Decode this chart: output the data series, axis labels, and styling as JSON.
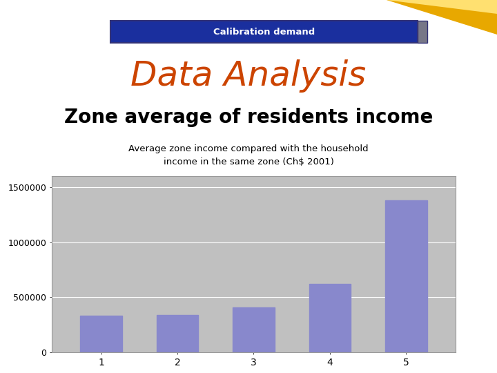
{
  "title_banner": "Calibration demand",
  "main_title": "Data Analysis",
  "subtitle": "Zone average of residents income",
  "sub_subtitle": "Average zone income compared with the household\nincome in the same zone (Ch$ 2001)",
  "categories": [
    1,
    2,
    3,
    4,
    5
  ],
  "values": [
    330000,
    340000,
    410000,
    620000,
    1380000
  ],
  "bar_color": "#8888cc",
  "chart_bg_color": "#c0c0c0",
  "ylim": [
    0,
    1600000
  ],
  "yticks": [
    0,
    500000,
    1000000,
    1500000
  ],
  "ytick_labels": [
    "0",
    "500000",
    "1000000",
    "1500000"
  ],
  "banner_bg_color": "#1a2f9e",
  "banner_border_color": "#333377",
  "banner_text_color": "#ffffff",
  "main_title_color": "#cc4400",
  "subtitle_color": "#000000",
  "yellow_color_light": "#ffe070",
  "yellow_color_dark": "#e8a800",
  "fig_bg_color": "#ffffff"
}
